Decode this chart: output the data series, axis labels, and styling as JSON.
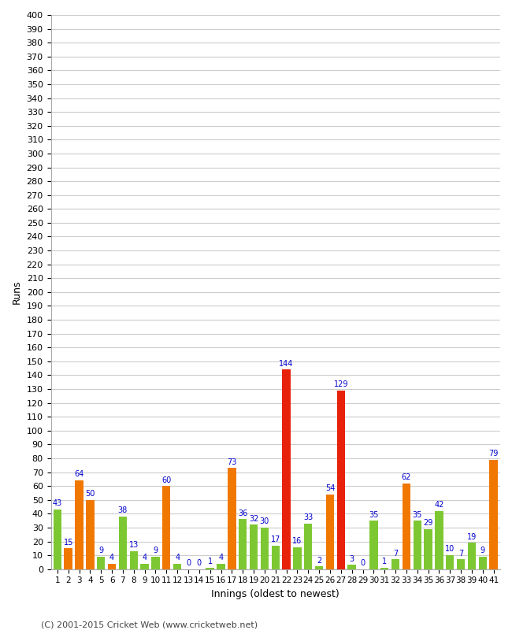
{
  "innings": [
    1,
    2,
    3,
    4,
    5,
    6,
    7,
    8,
    9,
    10,
    11,
    12,
    13,
    14,
    15,
    16,
    17,
    18,
    19,
    20,
    21,
    22,
    23,
    24,
    25,
    26,
    27,
    28,
    29,
    30,
    31,
    32,
    33,
    34,
    35,
    36,
    37,
    38,
    39,
    40,
    41
  ],
  "values": [
    43,
    15,
    64,
    50,
    9,
    4,
    38,
    13,
    4,
    9,
    60,
    4,
    0,
    0,
    1,
    4,
    73,
    36,
    32,
    30,
    17,
    144,
    16,
    33,
    2,
    54,
    129,
    3,
    0,
    35,
    1,
    7,
    62,
    35,
    29,
    42,
    10,
    7,
    19,
    9,
    79
  ],
  "colors": [
    "#7dc832",
    "#f07800",
    "#f07800",
    "#f07800",
    "#7dc832",
    "#f07800",
    "#7dc832",
    "#7dc832",
    "#7dc832",
    "#7dc832",
    "#f07800",
    "#7dc832",
    "#7dc832",
    "#7dc832",
    "#7dc832",
    "#7dc832",
    "#f07800",
    "#7dc832",
    "#7dc832",
    "#7dc832",
    "#7dc832",
    "#e8210a",
    "#7dc832",
    "#7dc832",
    "#7dc832",
    "#f07800",
    "#e8210a",
    "#7dc832",
    "#7dc832",
    "#7dc832",
    "#7dc832",
    "#7dc832",
    "#f07800",
    "#7dc832",
    "#7dc832",
    "#7dc832",
    "#7dc832",
    "#7dc832",
    "#7dc832",
    "#7dc832",
    "#f07800"
  ],
  "ylabel": "Runs",
  "xlabel": "Innings (oldest to newest)",
  "ylim": [
    0,
    400
  ],
  "yticks": [
    0,
    10,
    20,
    30,
    40,
    50,
    60,
    70,
    80,
    90,
    100,
    110,
    120,
    130,
    140,
    150,
    160,
    170,
    180,
    190,
    200,
    210,
    220,
    230,
    240,
    250,
    260,
    270,
    280,
    290,
    300,
    310,
    320,
    330,
    340,
    350,
    360,
    370,
    380,
    390,
    400
  ],
  "footer": "(C) 2001-2015 Cricket Web (www.cricketweb.net)",
  "bg_color": "#ffffff",
  "grid_color": "#cccccc",
  "label_color": "#0000cc",
  "label_fontsize": 7.0
}
